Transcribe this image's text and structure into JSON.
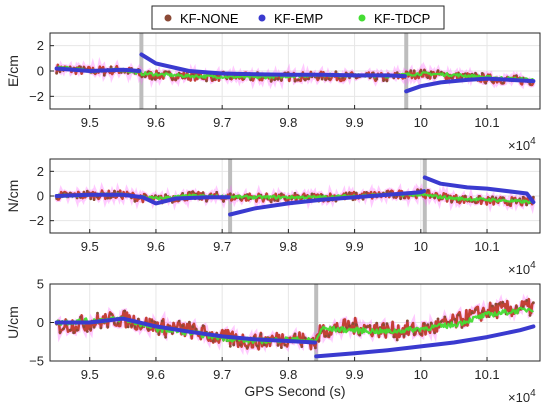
{
  "chart_data": [
    {
      "type": "line",
      "ylabel": "E/cm",
      "xlabel": "",
      "xlim": [
        94400,
        101800
      ],
      "ylim": [
        -3,
        3
      ],
      "xticks": [
        95000,
        96000,
        97000,
        98000,
        99000,
        100000,
        101000
      ],
      "xtick_labels": [
        "9.5",
        "9.6",
        "9.7",
        "9.8",
        "9.9",
        "10",
        "10.1"
      ],
      "yticks": [
        -2,
        0,
        2
      ],
      "ytick_labels": [
        "−2",
        "0",
        "2"
      ],
      "x_exponent": "×10",
      "x_exponent_power": "4",
      "gaps_x": [
        95780,
        99780
      ],
      "grid": true,
      "series": [
        {
          "name": "KF-NONE",
          "color": "#c0392b",
          "points": [
            [
              94500,
              0.2
            ],
            [
              95000,
              0.0
            ],
            [
              95500,
              0.1
            ],
            [
              95780,
              -0.3
            ],
            [
              96500,
              -0.4
            ],
            [
              97500,
              -0.5
            ],
            [
              98500,
              -0.4
            ],
            [
              99500,
              -0.5
            ],
            [
              100000,
              -0.2
            ],
            [
              100500,
              -0.4
            ],
            [
              101000,
              -0.6
            ],
            [
              101700,
              -0.8
            ]
          ],
          "noise": 0.35
        },
        {
          "name": "KF-EMP",
          "color": "#3a3acf",
          "points": [
            [
              94500,
              0.2
            ],
            [
              95000,
              0.0
            ],
            [
              95500,
              0.1
            ],
            [
              95750,
              0.0
            ],
            [
              95780,
              1.3
            ],
            [
              96000,
              0.6
            ],
            [
              96500,
              0.0
            ],
            [
              97000,
              -0.2
            ],
            [
              97500,
              -0.25
            ],
            [
              98000,
              -0.3
            ],
            [
              98500,
              -0.3
            ],
            [
              99000,
              -0.35
            ],
            [
              99500,
              -0.35
            ],
            [
              99760,
              -0.4
            ],
            [
              99780,
              -1.6
            ],
            [
              100000,
              -1.2
            ],
            [
              100300,
              -0.9
            ],
            [
              100700,
              -0.7
            ],
            [
              101000,
              -0.6
            ],
            [
              101700,
              -0.8
            ]
          ],
          "noise": 0
        },
        {
          "name": "KF-TDCP",
          "color": "#44dd33",
          "points": [
            [
              94500,
              0.3
            ],
            [
              95000,
              0.0
            ],
            [
              95500,
              0.1
            ],
            [
              95780,
              -0.2
            ],
            [
              96500,
              -0.4
            ],
            [
              97500,
              -0.5
            ],
            [
              98500,
              -0.3
            ],
            [
              99500,
              -0.4
            ],
            [
              100000,
              -0.2
            ],
            [
              100500,
              -0.3
            ],
            [
              101000,
              -0.5
            ],
            [
              101700,
              -0.7
            ]
          ],
          "noise": 0.12
        }
      ]
    },
    {
      "type": "line",
      "ylabel": "N/cm",
      "xlabel": "",
      "xlim": [
        94400,
        101800
      ],
      "ylim": [
        -3,
        3
      ],
      "xticks": [
        95000,
        96000,
        97000,
        98000,
        99000,
        100000,
        101000
      ],
      "xtick_labels": [
        "9.5",
        "9.6",
        "9.7",
        "9.8",
        "9.9",
        "10",
        "10.1"
      ],
      "yticks": [
        -2,
        0,
        2
      ],
      "ytick_labels": [
        "−2",
        "0",
        "2"
      ],
      "x_exponent": "×10",
      "x_exponent_power": "4",
      "gaps_x": [
        97120,
        100060
      ],
      "grid": true,
      "series": [
        {
          "name": "KF-NONE",
          "color": "#c0392b",
          "points": [
            [
              94500,
              0.0
            ],
            [
              95000,
              0.1
            ],
            [
              95500,
              0.1
            ],
            [
              96000,
              -0.3
            ],
            [
              96500,
              0.0
            ],
            [
              97000,
              -0.1
            ],
            [
              97500,
              -0.1
            ],
            [
              98000,
              -0.2
            ],
            [
              98500,
              -0.1
            ],
            [
              99000,
              0.0
            ],
            [
              99500,
              0.1
            ],
            [
              100000,
              0.2
            ],
            [
              100500,
              -0.2
            ],
            [
              101000,
              -0.4
            ],
            [
              101700,
              -0.5
            ]
          ],
          "noise": 0.35
        },
        {
          "name": "KF-EMP",
          "color": "#3a3acf",
          "points": [
            [
              94500,
              0.0
            ],
            [
              95000,
              0.1
            ],
            [
              95500,
              0.1
            ],
            [
              95800,
              -0.1
            ],
            [
              96000,
              -0.6
            ],
            [
              96300,
              -0.2
            ],
            [
              96800,
              -0.1
            ],
            [
              97100,
              -0.1
            ],
            [
              97120,
              -1.5
            ],
            [
              97500,
              -1.0
            ],
            [
              98000,
              -0.6
            ],
            [
              98500,
              -0.3
            ],
            [
              99000,
              -0.1
            ],
            [
              99500,
              0.1
            ],
            [
              100000,
              0.3
            ],
            [
              100050,
              0.4
            ],
            [
              100060,
              1.5
            ],
            [
              100300,
              1.0
            ],
            [
              100700,
              0.7
            ],
            [
              101000,
              0.6
            ],
            [
              101600,
              0.2
            ],
            [
              101700,
              -0.5
            ]
          ],
          "noise": 0
        },
        {
          "name": "KF-TDCP",
          "color": "#44dd33",
          "points": [
            [
              94500,
              0.0
            ],
            [
              95000,
              0.1
            ],
            [
              95500,
              0.1
            ],
            [
              96000,
              -0.2
            ],
            [
              96500,
              0.0
            ],
            [
              97500,
              -0.1
            ],
            [
              98500,
              -0.1
            ],
            [
              99500,
              0.1
            ],
            [
              100000,
              0.1
            ],
            [
              100500,
              -0.2
            ],
            [
              101000,
              -0.3
            ],
            [
              101700,
              -0.5
            ]
          ],
          "noise": 0.12
        }
      ]
    },
    {
      "type": "line",
      "ylabel": "U/cm",
      "xlabel": "GPS Second (s)",
      "xlim": [
        94400,
        101800
      ],
      "ylim": [
        -5,
        5
      ],
      "xticks": [
        95000,
        96000,
        97000,
        98000,
        99000,
        100000,
        101000
      ],
      "xtick_labels": [
        "9.5",
        "9.6",
        "9.7",
        "9.8",
        "9.9",
        "10",
        "10.1"
      ],
      "yticks": [
        -5,
        0,
        5
      ],
      "ytick_labels": [
        "−5",
        "0",
        "5"
      ],
      "x_exponent": "×10",
      "x_exponent_power": "4",
      "gaps_x": [
        98420
      ],
      "grid": true,
      "series": [
        {
          "name": "KF-NONE",
          "color": "#c0392b",
          "points": [
            [
              94500,
              -0.5
            ],
            [
              95000,
              0.0
            ],
            [
              95500,
              0.5
            ],
            [
              96000,
              -0.5
            ],
            [
              96500,
              -1.0
            ],
            [
              97000,
              -2.0
            ],
            [
              97500,
              -2.5
            ],
            [
              98000,
              -2.0
            ],
            [
              98420,
              -2.5
            ],
            [
              98500,
              -1.0
            ],
            [
              99000,
              -0.5
            ],
            [
              99500,
              -1.0
            ],
            [
              100000,
              -1.0
            ],
            [
              100500,
              0.0
            ],
            [
              101000,
              1.5
            ],
            [
              101700,
              2.0
            ]
          ],
          "noise": 1.1
        },
        {
          "name": "KF-EMP",
          "color": "#3a3acf",
          "points": [
            [
              94500,
              0.0
            ],
            [
              95000,
              0.0
            ],
            [
              95500,
              0.5
            ],
            [
              96000,
              -0.5
            ],
            [
              96500,
              -1.2
            ],
            [
              97000,
              -1.8
            ],
            [
              97500,
              -2.2
            ],
            [
              98000,
              -2.4
            ],
            [
              98400,
              -2.6
            ],
            [
              98420,
              -4.4
            ],
            [
              99000,
              -4.0
            ],
            [
              99500,
              -3.6
            ],
            [
              100000,
              -3.1
            ],
            [
              100500,
              -2.6
            ],
            [
              101000,
              -1.9
            ],
            [
              101500,
              -1.0
            ],
            [
              101700,
              -0.5
            ]
          ],
          "noise": 0
        },
        {
          "name": "KF-TDCP",
          "color": "#44dd33",
          "points": [
            [
              94500,
              0.0
            ],
            [
              95000,
              0.2
            ],
            [
              95500,
              0.5
            ],
            [
              96000,
              -0.8
            ],
            [
              96500,
              -1.3
            ],
            [
              97000,
              -2.0
            ],
            [
              97500,
              -2.4
            ],
            [
              98000,
              -2.2
            ],
            [
              98420,
              -2.4
            ],
            [
              98500,
              -0.8
            ],
            [
              99000,
              -1.0
            ],
            [
              99500,
              -1.2
            ],
            [
              100000,
              -0.8
            ],
            [
              100500,
              -0.3
            ],
            [
              101000,
              1.0
            ],
            [
              101700,
              1.8
            ]
          ],
          "noise": 0.35
        }
      ]
    }
  ],
  "legend": {
    "placement": "top-center",
    "items": [
      {
        "label": "KF-NONE",
        "color": "#8b4a36"
      },
      {
        "label": "KF-EMP",
        "color": "#3a3acf"
      },
      {
        "label": "KF-TDCP",
        "color": "#44dd33"
      }
    ]
  },
  "colors": {
    "axis": "#262626",
    "grid": "#e6e6e6",
    "gap_marker": "#bdbdbd",
    "glow": "#ff66ff",
    "glow2": "#66ffff"
  }
}
